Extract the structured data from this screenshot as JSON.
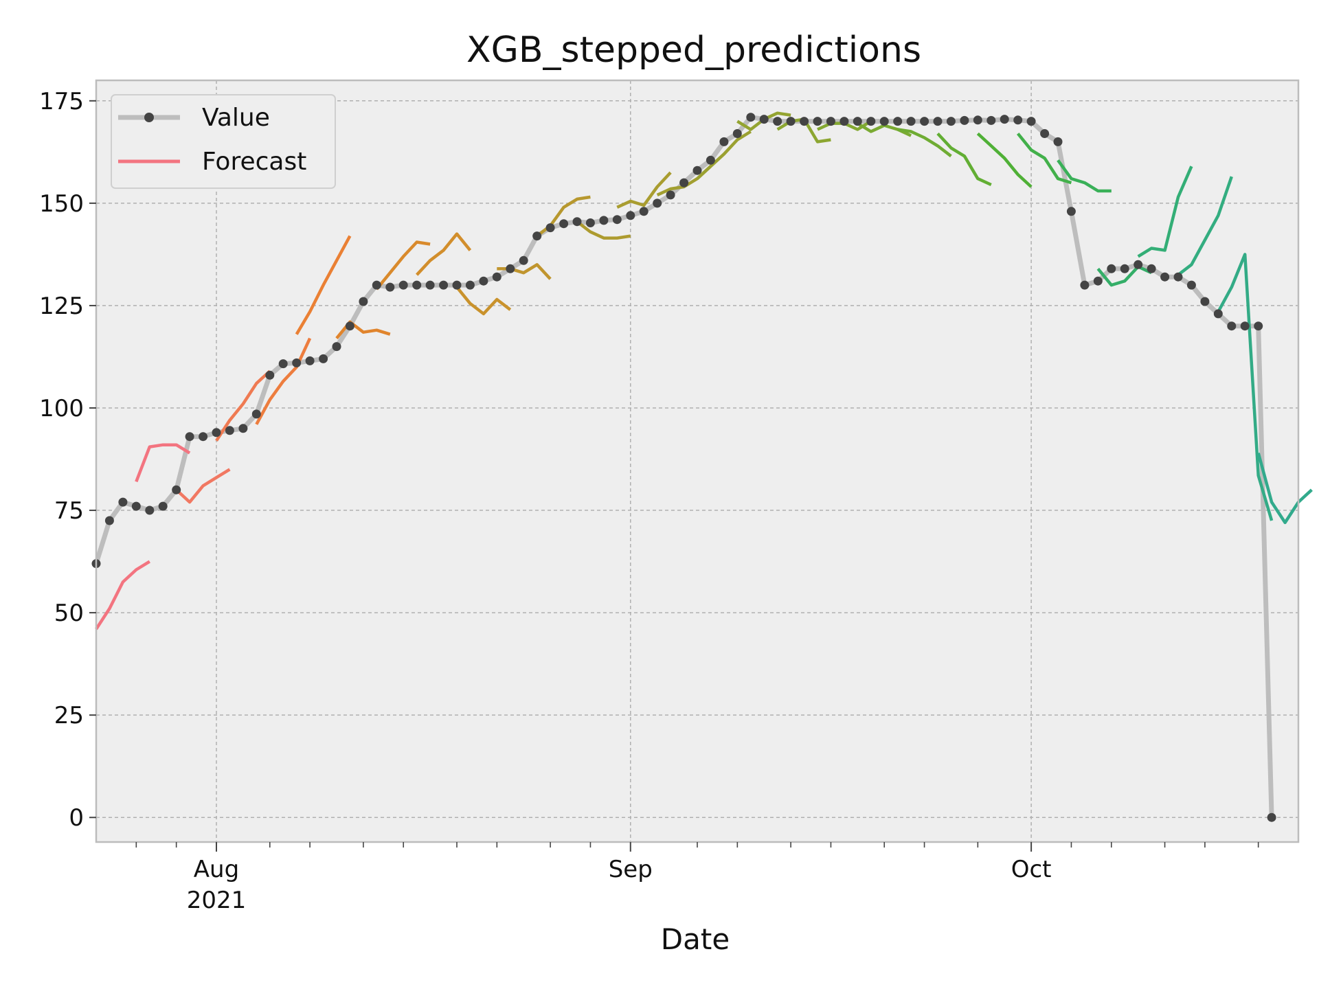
{
  "chart_data": {
    "type": "line",
    "title": "XGB_stepped_predictions",
    "xlabel": "Date",
    "ylabel": "",
    "x_range": [
      "2021-07-23",
      "2021-10-21"
    ],
    "ylim": [
      -6,
      180
    ],
    "y_ticks": [
      0,
      25,
      50,
      75,
      100,
      125,
      150,
      175
    ],
    "x_major_ticks": [
      {
        "date": "2021-08-01",
        "label": "Aug",
        "sublabel": "2021"
      },
      {
        "date": "2021-09-01",
        "label": "Sep",
        "sublabel": ""
      },
      {
        "date": "2021-10-01",
        "label": "Oct",
        "sublabel": ""
      }
    ],
    "x_minor_ticks": [
      "2021-07-26",
      "2021-07-29",
      "2021-08-05",
      "2021-08-08",
      "2021-08-12",
      "2021-08-15",
      "2021-08-19",
      "2021-08-22",
      "2021-08-26",
      "2021-08-29",
      "2021-09-06",
      "2021-09-09",
      "2021-09-13",
      "2021-09-16",
      "2021-09-20",
      "2021-09-23",
      "2021-09-27",
      "2021-10-04",
      "2021-10-07",
      "2021-10-11",
      "2021-10-14",
      "2021-10-18"
    ],
    "grid": true,
    "legend_position": "top-left",
    "legend": [
      {
        "name": "Value",
        "color": "#bdbdbd",
        "marker_color": "#444444"
      },
      {
        "name": "Forecast",
        "color": "#f37480"
      }
    ],
    "value_color": "#bdbdbd",
    "marker_color": "#444444",
    "value": {
      "start": "2021-07-23",
      "values": [
        62,
        72.5,
        77,
        76,
        75,
        76,
        80,
        93,
        93,
        94,
        94.5,
        95,
        98.5,
        108,
        110.8,
        111,
        111.5,
        112,
        115,
        120,
        126,
        130,
        129.5,
        130,
        130,
        130,
        130,
        130,
        130,
        131,
        132,
        134,
        136,
        142,
        144,
        145,
        145.5,
        145.2,
        145.8,
        146,
        147,
        148,
        150,
        152,
        155,
        158,
        160.5,
        165,
        167,
        171,
        170.5,
        170,
        170,
        170,
        170,
        170,
        170,
        170,
        170,
        170,
        170,
        170,
        170,
        170,
        170,
        170.2,
        170.3,
        170.2,
        170.5,
        170.3,
        170,
        167,
        165,
        148,
        130,
        131,
        134,
        134,
        135,
        134,
        132,
        132,
        130,
        126,
        123,
        120,
        120,
        120,
        0
      ]
    },
    "forecasts": [
      {
        "start": "2021-07-23",
        "color": "#f37480",
        "values": [
          46,
          51,
          57.5,
          60.5,
          62.5
        ]
      },
      {
        "start": "2021-07-26",
        "color": "#f37480",
        "values": [
          82,
          90.5,
          91,
          91,
          89
        ]
      },
      {
        "start": "2021-07-29",
        "color": "#f17862",
        "values": [
          80,
          77,
          81,
          83,
          85
        ]
      },
      {
        "start": "2021-08-01",
        "color": "#ef7a52",
        "values": [
          92,
          97,
          101,
          106,
          109
        ]
      },
      {
        "start": "2021-08-04",
        "color": "#ed7d3e",
        "values": [
          96,
          102,
          106.5,
          110,
          117
        ]
      },
      {
        "start": "2021-08-07",
        "color": "#ea8034",
        "values": [
          118,
          123.5,
          130,
          136,
          142
        ]
      },
      {
        "start": "2021-08-10",
        "color": "#e0842c",
        "values": [
          117,
          121,
          118.5,
          119,
          118
        ]
      },
      {
        "start": "2021-08-13",
        "color": "#d98a2c",
        "values": [
          129,
          133,
          137,
          140.5,
          140
        ]
      },
      {
        "start": "2021-08-16",
        "color": "#d28e2c",
        "values": [
          132.5,
          136,
          138.5,
          142.5,
          138.5
        ]
      },
      {
        "start": "2021-08-19",
        "color": "#c9922c",
        "values": [
          129.5,
          125.5,
          123,
          126.5,
          124
        ]
      },
      {
        "start": "2021-08-22",
        "color": "#c0952e",
        "values": [
          134,
          134,
          133,
          135,
          131.5
        ]
      },
      {
        "start": "2021-08-25",
        "color": "#b7982e",
        "values": [
          142,
          144.5,
          149,
          151,
          151.5
        ]
      },
      {
        "start": "2021-08-28",
        "color": "#ad9b2f",
        "values": [
          145.5,
          143,
          141.5,
          141.5,
          142
        ]
      },
      {
        "start": "2021-08-31",
        "color": "#a99d30",
        "values": [
          149,
          150.5,
          149.5,
          154,
          157.5
        ]
      },
      {
        "start": "2021-09-03",
        "color": "#a29f30",
        "values": [
          152,
          153.5,
          154,
          156,
          159
        ]
      },
      {
        "start": "2021-09-06",
        "color": "#9ba131",
        "values": [
          156,
          159,
          162,
          165.5,
          167.5
        ]
      },
      {
        "start": "2021-09-09",
        "color": "#94a431",
        "values": [
          170,
          168,
          170.5,
          172,
          171.5
        ]
      },
      {
        "start": "2021-09-12",
        "color": "#8ca631",
        "values": [
          168,
          170,
          170.5,
          165,
          165.5
        ]
      },
      {
        "start": "2021-09-15",
        "color": "#84a832",
        "values": [
          168,
          169.5,
          169.5,
          168,
          170
        ]
      },
      {
        "start": "2021-09-18",
        "color": "#7aaa32",
        "values": [
          169.5,
          167.5,
          169,
          168,
          166.5
        ]
      },
      {
        "start": "2021-09-21",
        "color": "#6fac33",
        "values": [
          168,
          167.5,
          166,
          164,
          161.5
        ]
      },
      {
        "start": "2021-09-24",
        "color": "#62ae33",
        "values": [
          167,
          163.5,
          161.5,
          156,
          154.5
        ]
      },
      {
        "start": "2021-09-27",
        "color": "#4fb036",
        "values": [
          167,
          164,
          161,
          157,
          154
        ]
      },
      {
        "start": "2021-09-30",
        "color": "#42b04a",
        "values": [
          167,
          163,
          161,
          156,
          155
        ]
      },
      {
        "start": "2021-10-03",
        "color": "#39b058",
        "values": [
          160.5,
          156,
          155,
          153,
          153
        ]
      },
      {
        "start": "2021-10-06",
        "color": "#34ae68",
        "values": [
          134,
          130,
          131,
          134.5,
          133
        ]
      },
      {
        "start": "2021-10-09",
        "color": "#33ae76",
        "values": [
          137,
          139,
          138.5,
          151.5,
          159
        ]
      },
      {
        "start": "2021-10-12",
        "color": "#33ad80",
        "values": [
          132.5,
          135,
          141,
          147,
          156.5
        ]
      },
      {
        "start": "2021-10-15",
        "color": "#33ab86",
        "values": [
          123.5,
          129.5,
          137.5,
          83.5,
          72.5
        ]
      },
      {
        "start": "2021-10-18",
        "color": "#32aa8c",
        "values": [
          89,
          77,
          72,
          77,
          80
        ]
      }
    ]
  }
}
